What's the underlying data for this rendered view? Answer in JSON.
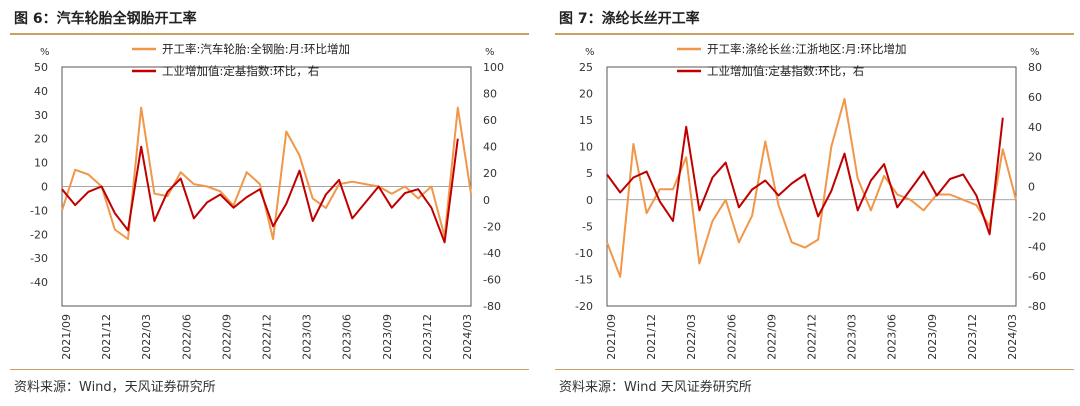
{
  "charts": [
    {
      "title": "图 6：汽车轮胎全钢胎开工率",
      "source": "资料来源：Wind，天风证券研究所",
      "chart_data": {
        "type": "line",
        "left_unit": "%",
        "right_unit": "%",
        "left_ylim": [
          -50,
          50
        ],
        "left_ticks": [
          -40,
          -30,
          -20,
          -10,
          0,
          10,
          20,
          30,
          40,
          50
        ],
        "right_ylim": [
          -80,
          100
        ],
        "right_ticks": [
          -80,
          -60,
          -40,
          -20,
          0,
          20,
          40,
          60,
          80,
          100
        ],
        "x_ticks": [
          "2021/09",
          "2021/12",
          "2022/03",
          "2022/06",
          "2022/09",
          "2022/12",
          "2023/03",
          "2023/06",
          "2023/09",
          "2023/12",
          "2024/03"
        ],
        "legend_position": "top",
        "series": [
          {
            "name": "开工率:汽车轮胎:全钢胎:月:环比增加",
            "color": "#f0974a",
            "axis": "left",
            "values": [
              -10,
              7,
              5,
              0,
              -18,
              -22,
              33,
              -3,
              -4,
              6,
              1,
              0,
              -2,
              -8,
              6,
              1,
              -22,
              23,
              13,
              -5,
              -9,
              1,
              2,
              1,
              0,
              -3,
              0,
              -5,
              0,
              -21,
              33,
              -3
            ]
          },
          {
            "name": "工业增加值:定基指数:环比，右",
            "color": "#c00000",
            "axis": "right",
            "values": [
              8,
              -4,
              6,
              10,
              -10,
              -23,
              40,
              -16,
              6,
              16,
              -14,
              -2,
              4,
              -6,
              2,
              8,
              -20,
              -3,
              22,
              -16,
              4,
              15,
              -14,
              -2,
              10,
              -6,
              5,
              8,
              -6,
              -32,
              46
            ]
          }
        ]
      }
    },
    {
      "title": "图 7：涤纶长丝开工率",
      "source": "资料来源：Wind 天风证券研究所",
      "chart_data": {
        "type": "line",
        "left_unit": "%",
        "right_unit": "%",
        "left_ylim": [
          -20,
          25
        ],
        "left_ticks": [
          -20,
          -15,
          -10,
          -5,
          0,
          5,
          10,
          15,
          20,
          25
        ],
        "right_ylim": [
          -80,
          80
        ],
        "right_ticks": [
          -80,
          -60,
          -40,
          -20,
          0,
          20,
          40,
          60,
          80
        ],
        "x_ticks": [
          "2021/09",
          "2021/12",
          "2022/03",
          "2022/06",
          "2022/09",
          "2022/12",
          "2023/03",
          "2023/06",
          "2023/09",
          "2023/12",
          "2024/03"
        ],
        "legend_position": "top",
        "series": [
          {
            "name": "开工率:涤纶长丝:江浙地区:月:环比增加",
            "color": "#f0974a",
            "axis": "left",
            "values": [
              -8,
              -14.5,
              10.5,
              -2.5,
              2,
              2,
              8,
              -12,
              -4,
              0,
              -8,
              -3,
              11,
              -1,
              -8,
              -9,
              -7.5,
              10,
              19,
              4,
              -2,
              4.5,
              1,
              0,
              -2,
              1,
              1,
              0,
              -1,
              -5,
              9.5,
              0
            ]
          },
          {
            "name": "工业增加值:定基指数:环比，右",
            "color": "#c00000",
            "axis": "right",
            "values": [
              8,
              -4,
              6,
              10,
              -10,
              -23,
              40,
              -16,
              6,
              16,
              -14,
              -2,
              4,
              -6,
              2,
              8,
              -20,
              -3,
              22,
              -16,
              4,
              15,
              -14,
              -2,
              10,
              -6,
              5,
              8,
              -6,
              -32,
              46
            ]
          }
        ]
      }
    }
  ]
}
